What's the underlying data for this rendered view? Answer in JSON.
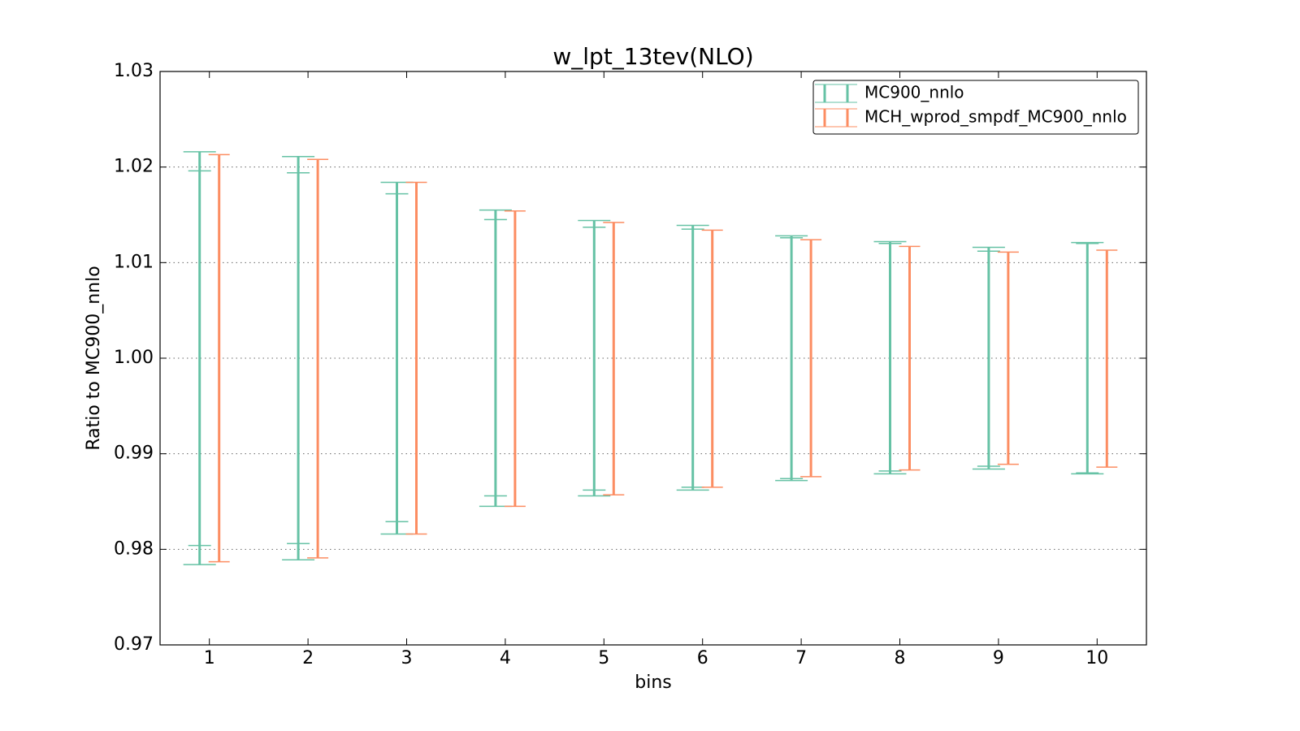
{
  "chart_data": {
    "type": "errorbar",
    "title": "w_lpt_13tev(NLO)",
    "x_label": "bins",
    "y_label": "Ratio to MC900_nnlo",
    "x": [
      1,
      2,
      3,
      4,
      5,
      6,
      7,
      8,
      9,
      10
    ],
    "xlim": [
      0.5,
      10.5
    ],
    "xticks": [
      1,
      2,
      3,
      4,
      5,
      6,
      7,
      8,
      9,
      10
    ],
    "ylim": [
      0.97,
      1.03
    ],
    "yticks": [
      0.97,
      0.98,
      0.99,
      {
        "value": 1,
        "label": "1.00"
      },
      1.01,
      1.02,
      1.03
    ],
    "grid": true,
    "legend": "upper right",
    "series": [
      {
        "name": "MC900_nnlo",
        "color": "#66c2a5",
        "upper": [
          1.0216,
          1.0211,
          1.0184,
          1.0155,
          1.0144,
          1.0139,
          1.0128,
          1.0122,
          1.0116,
          1.0121
        ],
        "lower": [
          0.9784,
          0.9789,
          0.9816,
          0.9845,
          0.9856,
          0.9862,
          0.9872,
          0.9879,
          0.9884,
          0.9879
        ],
        "inner_upper": [
          1.0196,
          1.0194,
          1.0172,
          1.0145,
          1.0137,
          1.0135,
          1.0126,
          1.012,
          1.0112,
          1.012
        ],
        "inner_lower": [
          0.9804,
          0.9806,
          0.9829,
          0.9856,
          0.9862,
          0.9865,
          0.9874,
          0.9882,
          0.9887,
          0.988
        ]
      },
      {
        "name": "MCH_wprod_smpdf_MC900_nnlo",
        "color": "#fc8d62",
        "upper": [
          1.0213,
          1.0208,
          1.0184,
          1.0154,
          1.0142,
          1.0134,
          1.0124,
          1.0117,
          1.0111,
          1.0113
        ],
        "lower": [
          0.9787,
          0.9791,
          0.9816,
          0.9845,
          0.9857,
          0.9865,
          0.9876,
          0.9883,
          0.9889,
          0.9886
        ]
      }
    ]
  }
}
